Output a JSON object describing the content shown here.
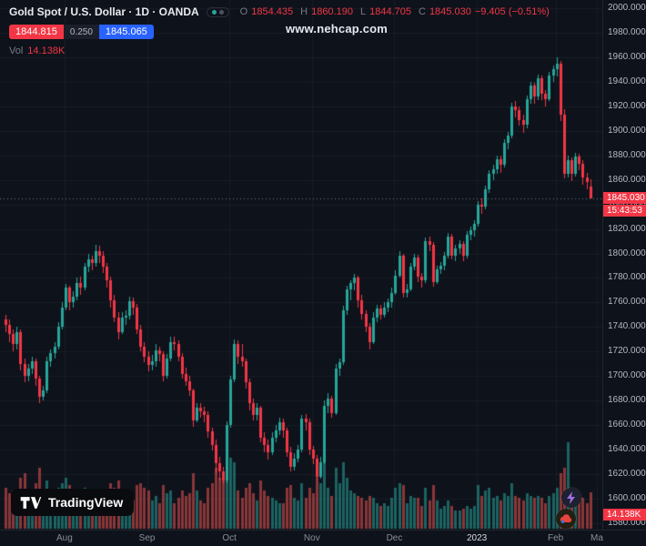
{
  "header": {
    "symbol_title": "Gold Spot / U.S. Dollar · 1D · OANDA",
    "ohlc": {
      "o_label": "O",
      "o": "1854.435",
      "h_label": "H",
      "h": "1860.190",
      "l_label": "L",
      "l": "1844.705",
      "c_label": "C",
      "c": "1845.030",
      "change": "−9.405 (−0.51%)"
    },
    "bid": "1844.815",
    "spread": "0.250",
    "ask": "1845.065",
    "vol_label": "Vol",
    "vol_value": "14.138K"
  },
  "watermark": "www.nehcap.com",
  "price_scale": {
    "last_price": "1845.030",
    "countdown": "15:43:53",
    "volume_badge": "14.138K"
  },
  "logo": {
    "text": "TradingView"
  },
  "colors": {
    "up": "#26a69a",
    "down": "#f23645",
    "sell": "#f23645",
    "buy": "#2962ff",
    "background": "#0e121b"
  },
  "chart_data": {
    "type": "candlestick",
    "title": "Gold Spot / U.S. Dollar 1D OANDA",
    "timeframe": "1D",
    "last_price": 1845.03,
    "y_axis": {
      "min": 1580,
      "max": 2000,
      "tick_step": 20,
      "tick_format_decimals": 3
    },
    "x_labels": [
      {
        "label": "Aug",
        "i": 16
      },
      {
        "label": "Sep",
        "i": 38
      },
      {
        "label": "Oct",
        "i": 60
      },
      {
        "label": "Nov",
        "i": 82
      },
      {
        "label": "Dec",
        "i": 104
      },
      {
        "label": "2023",
        "i": 126,
        "major": true
      },
      {
        "label": "Feb",
        "i": 147
      },
      {
        "label": "Ma",
        "i": 158
      }
    ],
    "candles_format": [
      "open",
      "high",
      "low",
      "close",
      "volume_k"
    ],
    "candles": [
      [
        1746,
        1750,
        1736,
        1742,
        16
      ],
      [
        1742,
        1746,
        1728,
        1734,
        14
      ],
      [
        1734,
        1738,
        1720,
        1726,
        15
      ],
      [
        1726,
        1740,
        1722,
        1736,
        12
      ],
      [
        1736,
        1738,
        1705,
        1710,
        20
      ],
      [
        1710,
        1714,
        1695,
        1700,
        22
      ],
      [
        1700,
        1710,
        1696,
        1706,
        13
      ],
      [
        1706,
        1716,
        1702,
        1712,
        12
      ],
      [
        1712,
        1714,
        1692,
        1698,
        18
      ],
      [
        1698,
        1700,
        1678,
        1683,
        24
      ],
      [
        1683,
        1692,
        1680,
        1688,
        15
      ],
      [
        1688,
        1716,
        1686,
        1712,
        19
      ],
      [
        1712,
        1722,
        1708,
        1719,
        13
      ],
      [
        1719,
        1728,
        1714,
        1724,
        12
      ],
      [
        1724,
        1744,
        1722,
        1740,
        16
      ],
      [
        1740,
        1760,
        1738,
        1756,
        18
      ],
      [
        1756,
        1775,
        1754,
        1772,
        20
      ],
      [
        1772,
        1774,
        1754,
        1760,
        17
      ],
      [
        1760,
        1769,
        1756,
        1765,
        12
      ],
      [
        1765,
        1780,
        1762,
        1776,
        14
      ],
      [
        1776,
        1781,
        1766,
        1772,
        11
      ],
      [
        1772,
        1792,
        1770,
        1789,
        16
      ],
      [
        1789,
        1800,
        1785,
        1795,
        14
      ],
      [
        1795,
        1798,
        1786,
        1792,
        10
      ],
      [
        1792,
        1807,
        1789,
        1802,
        15
      ],
      [
        1802,
        1806,
        1792,
        1798,
        12
      ],
      [
        1798,
        1802,
        1784,
        1789,
        13
      ],
      [
        1789,
        1792,
        1772,
        1778,
        15
      ],
      [
        1778,
        1781,
        1756,
        1762,
        18
      ],
      [
        1762,
        1766,
        1744,
        1748,
        16
      ],
      [
        1748,
        1752,
        1730,
        1736,
        19
      ],
      [
        1736,
        1752,
        1734,
        1748,
        13
      ],
      [
        1748,
        1754,
        1742,
        1749,
        10
      ],
      [
        1749,
        1765,
        1746,
        1761,
        12
      ],
      [
        1761,
        1764,
        1750,
        1756,
        11
      ],
      [
        1756,
        1759,
        1734,
        1738,
        17
      ],
      [
        1738,
        1742,
        1720,
        1724,
        18
      ],
      [
        1724,
        1728,
        1711,
        1716,
        16
      ],
      [
        1716,
        1720,
        1704,
        1709,
        15
      ],
      [
        1709,
        1717,
        1705,
        1712,
        11
      ],
      [
        1712,
        1726,
        1708,
        1721,
        13
      ],
      [
        1721,
        1724,
        1712,
        1718,
        10
      ],
      [
        1718,
        1720,
        1696,
        1700,
        17
      ],
      [
        1700,
        1718,
        1698,
        1714,
        14
      ],
      [
        1714,
        1732,
        1712,
        1728,
        15
      ],
      [
        1728,
        1732,
        1721,
        1726,
        10
      ],
      [
        1726,
        1729,
        1712,
        1716,
        12
      ],
      [
        1716,
        1719,
        1698,
        1702,
        15
      ],
      [
        1702,
        1707,
        1692,
        1696,
        13
      ],
      [
        1696,
        1700,
        1684,
        1688,
        14
      ],
      [
        1688,
        1690,
        1659,
        1664,
        22
      ],
      [
        1664,
        1678,
        1662,
        1674,
        15
      ],
      [
        1674,
        1678,
        1666,
        1671,
        11
      ],
      [
        1671,
        1675,
        1662,
        1668,
        10
      ],
      [
        1668,
        1671,
        1650,
        1655,
        16
      ],
      [
        1655,
        1658,
        1639,
        1644,
        18
      ],
      [
        1644,
        1648,
        1621,
        1629,
        24
      ],
      [
        1629,
        1634,
        1615,
        1622,
        20
      ],
      [
        1622,
        1626,
        1613,
        1615,
        19
      ],
      [
        1615,
        1663,
        1613,
        1660,
        26
      ],
      [
        1660,
        1700,
        1658,
        1697,
        28
      ],
      [
        1697,
        1730,
        1695,
        1726,
        26
      ],
      [
        1726,
        1729,
        1710,
        1716,
        15
      ],
      [
        1716,
        1726,
        1708,
        1712,
        12
      ],
      [
        1712,
        1714,
        1690,
        1695,
        16
      ],
      [
        1695,
        1698,
        1672,
        1678,
        18
      ],
      [
        1678,
        1682,
        1664,
        1668,
        14
      ],
      [
        1668,
        1678,
        1664,
        1674,
        11
      ],
      [
        1674,
        1676,
        1646,
        1650,
        19
      ],
      [
        1650,
        1654,
        1638,
        1644,
        15
      ],
      [
        1644,
        1648,
        1632,
        1638,
        13
      ],
      [
        1638,
        1654,
        1636,
        1650,
        12
      ],
      [
        1650,
        1660,
        1646,
        1656,
        11
      ],
      [
        1656,
        1666,
        1652,
        1662,
        10
      ],
      [
        1662,
        1665,
        1650,
        1656,
        10
      ],
      [
        1656,
        1658,
        1634,
        1638,
        16
      ],
      [
        1638,
        1642,
        1622,
        1626,
        17
      ],
      [
        1626,
        1637,
        1623,
        1633,
        12
      ],
      [
        1633,
        1644,
        1630,
        1640,
        11
      ],
      [
        1640,
        1668,
        1638,
        1665,
        18
      ],
      [
        1665,
        1669,
        1656,
        1662,
        12
      ],
      [
        1662,
        1665,
        1636,
        1640,
        16
      ],
      [
        1640,
        1643,
        1628,
        1633,
        14
      ],
      [
        1633,
        1636,
        1616,
        1618,
        20
      ],
      [
        1618,
        1634,
        1616,
        1630,
        18
      ],
      [
        1630,
        1680,
        1628,
        1676,
        28
      ],
      [
        1676,
        1686,
        1670,
        1682,
        16
      ],
      [
        1682,
        1684,
        1666,
        1670,
        13
      ],
      [
        1670,
        1710,
        1668,
        1706,
        24
      ],
      [
        1706,
        1714,
        1700,
        1711,
        18
      ],
      [
        1711,
        1757,
        1709,
        1754,
        26
      ],
      [
        1754,
        1774,
        1750,
        1771,
        20
      ],
      [
        1771,
        1778,
        1762,
        1776,
        15
      ],
      [
        1776,
        1783,
        1770,
        1780,
        14
      ],
      [
        1780,
        1782,
        1756,
        1762,
        13
      ],
      [
        1762,
        1766,
        1746,
        1751,
        12
      ],
      [
        1751,
        1754,
        1736,
        1740,
        11
      ],
      [
        1740,
        1743,
        1722,
        1728,
        13
      ],
      [
        1728,
        1752,
        1726,
        1748,
        12
      ],
      [
        1748,
        1758,
        1744,
        1755,
        10
      ],
      [
        1755,
        1758,
        1746,
        1750,
        9
      ],
      [
        1750,
        1760,
        1748,
        1756,
        10
      ],
      [
        1756,
        1763,
        1752,
        1760,
        9
      ],
      [
        1760,
        1772,
        1756,
        1768,
        12
      ],
      [
        1768,
        1786,
        1766,
        1782,
        16
      ],
      [
        1782,
        1802,
        1780,
        1798,
        18
      ],
      [
        1798,
        1800,
        1764,
        1768,
        17
      ],
      [
        1768,
        1775,
        1764,
        1771,
        10
      ],
      [
        1771,
        1792,
        1769,
        1789,
        13
      ],
      [
        1789,
        1800,
        1786,
        1797,
        12
      ],
      [
        1797,
        1799,
        1777,
        1781,
        12
      ],
      [
        1781,
        1784,
        1772,
        1778,
        9
      ],
      [
        1778,
        1813,
        1776,
        1810,
        16
      ],
      [
        1810,
        1814,
        1802,
        1807,
        11
      ],
      [
        1807,
        1809,
        1773,
        1777,
        17
      ],
      [
        1777,
        1790,
        1775,
        1787,
        11
      ],
      [
        1787,
        1793,
        1783,
        1790,
        8
      ],
      [
        1790,
        1801,
        1786,
        1798,
        9
      ],
      [
        1798,
        1817,
        1796,
        1814,
        11
      ],
      [
        1814,
        1816,
        1795,
        1798,
        9
      ],
      [
        1798,
        1807,
        1794,
        1804,
        7
      ],
      [
        1804,
        1811,
        1800,
        1808,
        7
      ],
      [
        1808,
        1810,
        1794,
        1798,
        8
      ],
      [
        1798,
        1818,
        1796,
        1815,
        9
      ],
      [
        1815,
        1822,
        1811,
        1819,
        8
      ],
      [
        1819,
        1827,
        1814,
        1824,
        9
      ],
      [
        1824,
        1843,
        1822,
        1840,
        17
      ],
      [
        1840,
        1845,
        1832,
        1838,
        13
      ],
      [
        1838,
        1855,
        1836,
        1852,
        15
      ],
      [
        1852,
        1868,
        1849,
        1865,
        16
      ],
      [
        1865,
        1872,
        1860,
        1869,
        12
      ],
      [
        1869,
        1880,
        1865,
        1877,
        13
      ],
      [
        1877,
        1880,
        1866,
        1872,
        11
      ],
      [
        1872,
        1893,
        1870,
        1890,
        14
      ],
      [
        1890,
        1899,
        1885,
        1896,
        13
      ],
      [
        1896,
        1923,
        1894,
        1920,
        18
      ],
      [
        1920,
        1924,
        1911,
        1917,
        13
      ],
      [
        1917,
        1920,
        1904,
        1909,
        12
      ],
      [
        1909,
        1913,
        1898,
        1905,
        11
      ],
      [
        1905,
        1929,
        1902,
        1926,
        14
      ],
      [
        1926,
        1940,
        1922,
        1937,
        13
      ],
      [
        1937,
        1939,
        1922,
        1928,
        12
      ],
      [
        1928,
        1946,
        1925,
        1943,
        13
      ],
      [
        1943,
        1945,
        1925,
        1930,
        12
      ],
      [
        1930,
        1933,
        1920,
        1926,
        10
      ],
      [
        1926,
        1948,
        1924,
        1945,
        13
      ],
      [
        1945,
        1953,
        1940,
        1950,
        14
      ],
      [
        1950,
        1960,
        1944,
        1955,
        16
      ],
      [
        1955,
        1957,
        1908,
        1913,
        22
      ],
      [
        1913,
        1918,
        1861,
        1865,
        24
      ],
      [
        1865,
        1880,
        1862,
        1876,
        34
      ],
      [
        1876,
        1878,
        1859,
        1865,
        14
      ],
      [
        1865,
        1882,
        1863,
        1879,
        13
      ],
      [
        1879,
        1881,
        1868,
        1873,
        11
      ],
      [
        1873,
        1876,
        1856,
        1862,
        12
      ],
      [
        1862,
        1866,
        1852,
        1858,
        10
      ],
      [
        1854.435,
        1860.19,
        1844.705,
        1845.03,
        14.138
      ]
    ]
  }
}
